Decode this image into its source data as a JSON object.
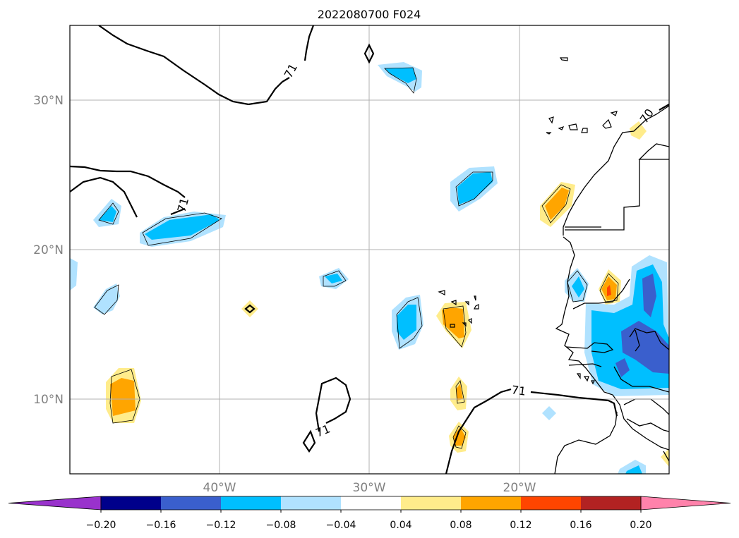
{
  "title": "2022080700 F024",
  "map": {
    "lon_range": [
      -50,
      -10
    ],
    "lat_range": [
      5,
      35
    ],
    "lat_ticks": [
      {
        "lat": 30,
        "label": "30°N"
      },
      {
        "lat": 20,
        "label": "20°N"
      },
      {
        "lat": 10,
        "label": "10°N"
      }
    ],
    "lon_ticks": [
      {
        "lon": -40,
        "label": "40°W"
      },
      {
        "lon": -30,
        "label": "30°W"
      },
      {
        "lon": -20,
        "label": "20°W"
      }
    ],
    "contour_labels": [
      "71",
      "71",
      "71",
      "71",
      "70"
    ]
  },
  "colorbar": {
    "ticks": [
      "−0.20",
      "−0.16",
      "−0.12",
      "−0.08",
      "−0.04",
      "0.04",
      "0.08",
      "0.12",
      "0.16",
      "0.20"
    ],
    "colors": [
      "#9932cc",
      "#00008b",
      "#3a5fcd",
      "#00bfff",
      "#b0e2ff",
      "#ffffff",
      "#ffec8b",
      "#ffa500",
      "#ff4500",
      "#b22222",
      "#ff82ab"
    ]
  }
}
